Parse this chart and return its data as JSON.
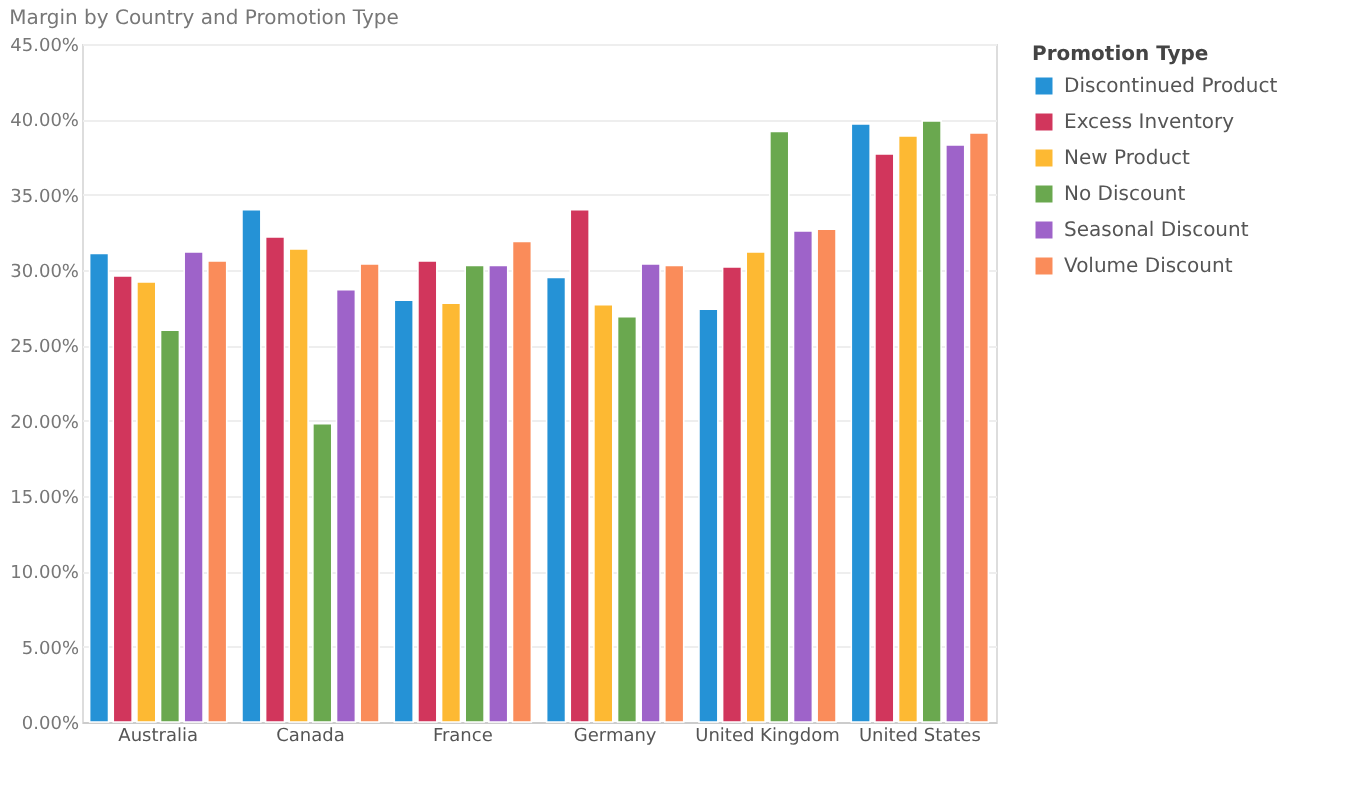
{
  "chart_data": {
    "type": "bar",
    "title": "Margin by Country and Promotion Type",
    "legend_title": "Promotion Type",
    "categories": [
      "Australia",
      "Canada",
      "France",
      "Germany",
      "United Kingdom",
      "United States"
    ],
    "series": [
      {
        "name": "Discontinued Product",
        "color": "#2592d6",
        "values": [
          31.1,
          34.0,
          28.0,
          29.5,
          27.4,
          39.7
        ]
      },
      {
        "name": "Excess Inventory",
        "color": "#d1365c",
        "values": [
          29.6,
          32.2,
          30.6,
          34.0,
          30.2,
          37.7
        ]
      },
      {
        "name": "New Product",
        "color": "#fdb933",
        "values": [
          29.2,
          31.4,
          27.8,
          27.7,
          31.2,
          38.9
        ]
      },
      {
        "name": "No Discount",
        "color": "#6aa84f",
        "values": [
          26.0,
          19.8,
          30.3,
          26.9,
          39.2,
          39.9
        ]
      },
      {
        "name": "Seasonal Discount",
        "color": "#9e63c9",
        "values": [
          31.2,
          28.7,
          30.3,
          30.4,
          32.6,
          38.3
        ]
      },
      {
        "name": "Volume Discount",
        "color": "#fa8c5a",
        "values": [
          30.6,
          30.4,
          31.9,
          30.3,
          32.7,
          39.1
        ]
      }
    ],
    "ylim": [
      0,
      45
    ],
    "yticks": [
      {
        "value": 0,
        "label": "0.00%"
      },
      {
        "value": 5,
        "label": "5.00%"
      },
      {
        "value": 10,
        "label": "10.00%"
      },
      {
        "value": 15,
        "label": "15.00%"
      },
      {
        "value": 20,
        "label": "20.00%"
      },
      {
        "value": 25,
        "label": "25.00%"
      },
      {
        "value": 30,
        "label": "30.00%"
      },
      {
        "value": 35,
        "label": "35.00%"
      },
      {
        "value": 40,
        "label": "40.00%"
      },
      {
        "value": 45,
        "label": "45.00%"
      }
    ],
    "grid": "y",
    "legend": "top right"
  }
}
